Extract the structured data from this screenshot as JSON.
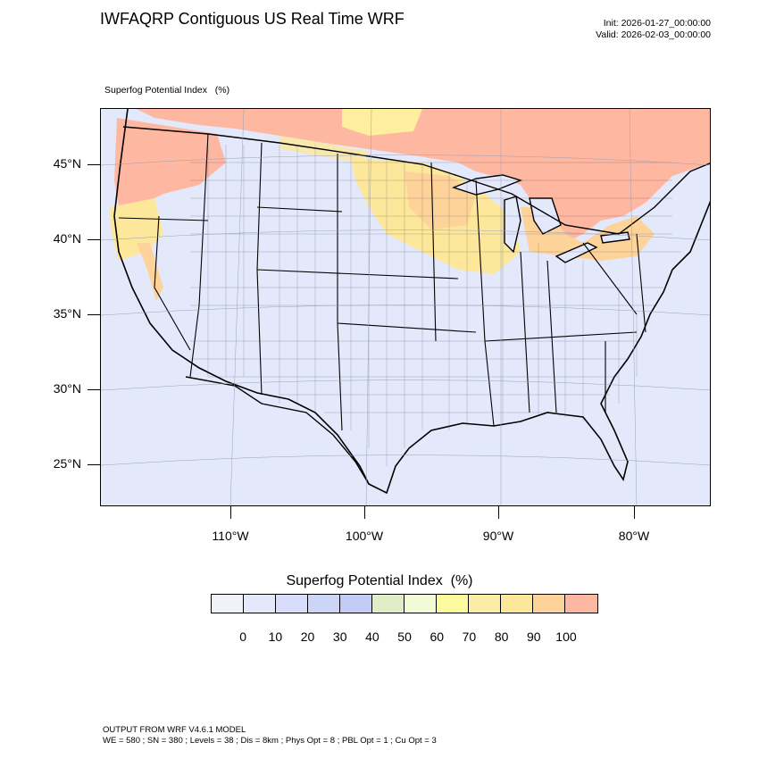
{
  "title": "IWFAQRP Contiguous US Real Time WRF",
  "init": "Init: 2026-01-27_00:00:00",
  "valid": "Valid: 2026-02-03_00:00:00",
  "field_label": "Superfog Potential Index   (%)",
  "map": {
    "projection": "lambert-conformal",
    "lat_labels": [
      "45°N",
      "40°N",
      "35°N",
      "30°N",
      "25°N"
    ],
    "lon_labels": [
      "110°W",
      "100°W",
      "90°W",
      "80°W"
    ],
    "background_color": "#e3e8fb",
    "dominant_index_range": "0-10",
    "high_index_regions": [
      "Pacific Northwest",
      "Northern Plains",
      "Upper Midwest",
      "Great Lakes / Ontario",
      "Southern Canada"
    ]
  },
  "colorbar": {
    "title": "Superfog Potential Index  (%)",
    "labels": [
      "0",
      "10",
      "20",
      "30",
      "40",
      "50",
      "60",
      "70",
      "80",
      "90",
      "100"
    ],
    "colors": [
      "#f0f2f8",
      "#e4e8fb",
      "#d6dcf9",
      "#cdd5f7",
      "#c4ccf5",
      "#dfedc6",
      "#f3fbd6",
      "#fcfc9e",
      "#fbeca8",
      "#fde79a",
      "#fed39a",
      "#feb7a0"
    ]
  },
  "footer": {
    "line1": "OUTPUT FROM WRF V4.6.1 MODEL",
    "line2": "WE = 580 ; SN = 380 ; Levels = 38 ; Dis = 8km ; Phys Opt = 8 ; PBL Opt = 1 ; Cu Opt = 3"
  }
}
